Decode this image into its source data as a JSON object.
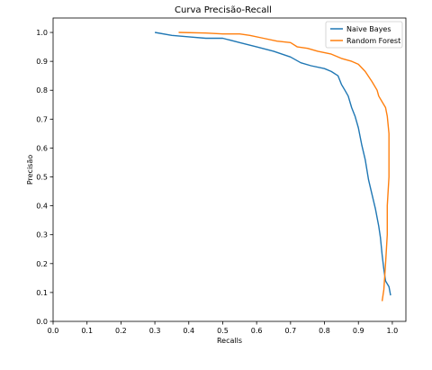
{
  "chart_data": {
    "type": "line",
    "title": "Curva Precisão-Recall",
    "xlabel": "Recalls",
    "ylabel": "Precisão",
    "xlim": [
      0.0,
      1.04
    ],
    "ylim": [
      0.0,
      1.05
    ],
    "xticks": [
      0.0,
      0.1,
      0.2,
      0.3,
      0.4,
      0.5,
      0.6,
      0.7,
      0.8,
      0.9,
      1.0
    ],
    "yticks": [
      0.0,
      0.1,
      0.2,
      0.3,
      0.4,
      0.5,
      0.6,
      0.7,
      0.8,
      0.9,
      1.0
    ],
    "grid": false,
    "legend": "top-right",
    "series": [
      {
        "name": "Naive Bayes",
        "color": "#1f77b4",
        "x": [
          0.3,
          0.35,
          0.4,
          0.45,
          0.5,
          0.55,
          0.6,
          0.65,
          0.7,
          0.73,
          0.76,
          0.8,
          0.82,
          0.84,
          0.85,
          0.86,
          0.87,
          0.88,
          0.89,
          0.9,
          0.91,
          0.92,
          0.93,
          0.94,
          0.95,
          0.96,
          0.965,
          0.97,
          0.975,
          0.98,
          0.99,
          0.995
        ],
        "y": [
          1.0,
          0.99,
          0.985,
          0.98,
          0.98,
          0.965,
          0.95,
          0.935,
          0.915,
          0.895,
          0.885,
          0.875,
          0.865,
          0.85,
          0.82,
          0.8,
          0.78,
          0.74,
          0.71,
          0.67,
          0.61,
          0.56,
          0.49,
          0.44,
          0.39,
          0.33,
          0.29,
          0.23,
          0.18,
          0.14,
          0.12,
          0.09
        ]
      },
      {
        "name": "Random Forest",
        "color": "#ff7f0e",
        "x": [
          0.37,
          0.45,
          0.5,
          0.55,
          0.58,
          0.62,
          0.66,
          0.7,
          0.72,
          0.75,
          0.78,
          0.82,
          0.85,
          0.88,
          0.9,
          0.92,
          0.94,
          0.955,
          0.96,
          0.97,
          0.98,
          0.985,
          0.99,
          0.99,
          0.985,
          0.985,
          0.98,
          0.975,
          0.97
        ],
        "y": [
          1.0,
          0.998,
          0.995,
          0.995,
          0.99,
          0.98,
          0.97,
          0.965,
          0.95,
          0.945,
          0.935,
          0.925,
          0.91,
          0.9,
          0.89,
          0.865,
          0.83,
          0.8,
          0.78,
          0.76,
          0.74,
          0.71,
          0.65,
          0.5,
          0.4,
          0.3,
          0.2,
          0.11,
          0.07
        ]
      }
    ]
  }
}
